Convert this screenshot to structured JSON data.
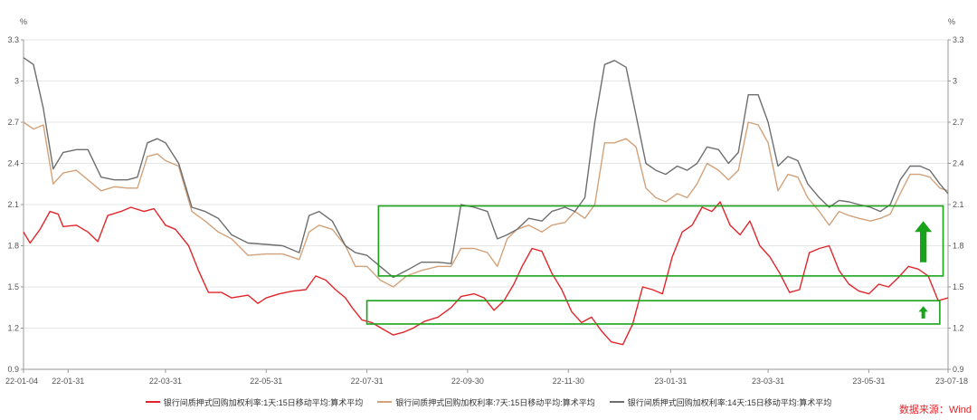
{
  "chart_data": {
    "type": "line",
    "left_unit": "%",
    "right_unit": "%",
    "ylim": [
      0.9,
      3.3
    ],
    "y_ticks": [
      0.9,
      1.2,
      1.5,
      1.8,
      2.1,
      2.4,
      2.7,
      3,
      3.3
    ],
    "y_tick_labels": [
      "0.9",
      "1.2",
      "1.5",
      "1.8",
      "2.1",
      "2.4",
      "2.7",
      "3",
      "3.3"
    ],
    "x_range": [
      "2022-01-04",
      "2023-07-18"
    ],
    "x_ticks": [
      "2022-01-04",
      "2022-01-31",
      "2022-03-31",
      "2022-05-31",
      "2022-07-31",
      "2022-09-30",
      "2022-11-30",
      "2023-01-31",
      "2023-03-31",
      "2023-05-31",
      "2023-07-18"
    ],
    "x_tick_labels": [
      "22-01-04",
      "22-01-31",
      "22-03-31",
      "22-05-31",
      "22-07-31",
      "22-09-30",
      "22-11-30",
      "23-01-31",
      "23-03-31",
      "23-05-31",
      "23-07-18"
    ],
    "grid": "horizontal",
    "legend_position": "bottom",
    "series": [
      {
        "name": "银行间质押式回购加权利率:1天:15日移动平均:算术平均",
        "color": "#e0262b",
        "points": [
          [
            "2022-01-04",
            1.9
          ],
          [
            "2022-01-08",
            1.82
          ],
          [
            "2022-01-14",
            1.92
          ],
          [
            "2022-01-20",
            2.05
          ],
          [
            "2022-01-25",
            2.03
          ],
          [
            "2022-01-28",
            1.94
          ],
          [
            "2022-02-05",
            1.95
          ],
          [
            "2022-02-12",
            1.9
          ],
          [
            "2022-02-18",
            1.83
          ],
          [
            "2022-02-24",
            2.02
          ],
          [
            "2022-03-04",
            2.05
          ],
          [
            "2022-03-10",
            2.08
          ],
          [
            "2022-03-18",
            2.05
          ],
          [
            "2022-03-24",
            2.07
          ],
          [
            "2022-03-31",
            1.95
          ],
          [
            "2022-04-06",
            1.92
          ],
          [
            "2022-04-14",
            1.8
          ],
          [
            "2022-04-20",
            1.62
          ],
          [
            "2022-04-26",
            1.46
          ],
          [
            "2022-05-04",
            1.46
          ],
          [
            "2022-05-10",
            1.42
          ],
          [
            "2022-05-20",
            1.44
          ],
          [
            "2022-05-26",
            1.38
          ],
          [
            "2022-05-31",
            1.42
          ],
          [
            "2022-06-08",
            1.45
          ],
          [
            "2022-06-16",
            1.47
          ],
          [
            "2022-06-24",
            1.48
          ],
          [
            "2022-06-30",
            1.58
          ],
          [
            "2022-07-06",
            1.55
          ],
          [
            "2022-07-12",
            1.48
          ],
          [
            "2022-07-18",
            1.42
          ],
          [
            "2022-07-22",
            1.35
          ],
          [
            "2022-07-28",
            1.26
          ],
          [
            "2022-08-03",
            1.24
          ],
          [
            "2022-08-10",
            1.19
          ],
          [
            "2022-08-16",
            1.15
          ],
          [
            "2022-08-22",
            1.17
          ],
          [
            "2022-08-28",
            1.2
          ],
          [
            "2022-09-04",
            1.25
          ],
          [
            "2022-09-12",
            1.28
          ],
          [
            "2022-09-20",
            1.35
          ],
          [
            "2022-09-26",
            1.43
          ],
          [
            "2022-10-04",
            1.45
          ],
          [
            "2022-10-10",
            1.42
          ],
          [
            "2022-10-16",
            1.33
          ],
          [
            "2022-10-22",
            1.4
          ],
          [
            "2022-10-28",
            1.52
          ],
          [
            "2022-11-02",
            1.65
          ],
          [
            "2022-11-08",
            1.78
          ],
          [
            "2022-11-14",
            1.76
          ],
          [
            "2022-11-20",
            1.6
          ],
          [
            "2022-11-26",
            1.48
          ],
          [
            "2022-12-02",
            1.32
          ],
          [
            "2022-12-08",
            1.24
          ],
          [
            "2022-12-14",
            1.28
          ],
          [
            "2022-12-20",
            1.18
          ],
          [
            "2022-12-26",
            1.1
          ],
          [
            "2023-01-02",
            1.08
          ],
          [
            "2023-01-08",
            1.23
          ],
          [
            "2023-01-14",
            1.5
          ],
          [
            "2023-01-20",
            1.48
          ],
          [
            "2023-01-26",
            1.45
          ],
          [
            "2023-02-01",
            1.72
          ],
          [
            "2023-02-07",
            1.9
          ],
          [
            "2023-02-13",
            1.95
          ],
          [
            "2023-02-19",
            2.08
          ],
          [
            "2023-02-25",
            2.05
          ],
          [
            "2023-03-02",
            2.12
          ],
          [
            "2023-03-08",
            1.95
          ],
          [
            "2023-03-14",
            1.88
          ],
          [
            "2023-03-20",
            1.98
          ],
          [
            "2023-03-26",
            1.8
          ],
          [
            "2023-04-01",
            1.72
          ],
          [
            "2023-04-07",
            1.6
          ],
          [
            "2023-04-13",
            1.46
          ],
          [
            "2023-04-19",
            1.48
          ],
          [
            "2023-04-25",
            1.75
          ],
          [
            "2023-05-01",
            1.78
          ],
          [
            "2023-05-07",
            1.8
          ],
          [
            "2023-05-13",
            1.62
          ],
          [
            "2023-05-19",
            1.52
          ],
          [
            "2023-05-25",
            1.47
          ],
          [
            "2023-05-31",
            1.45
          ],
          [
            "2023-06-06",
            1.52
          ],
          [
            "2023-06-12",
            1.5
          ],
          [
            "2023-06-18",
            1.57
          ],
          [
            "2023-06-24",
            1.65
          ],
          [
            "2023-06-30",
            1.63
          ],
          [
            "2023-07-06",
            1.58
          ],
          [
            "2023-07-12",
            1.4
          ],
          [
            "2023-07-18",
            1.42
          ]
        ]
      },
      {
        "name": "银行间质押式回购加权利率:7天:15日移动平均:算术平均",
        "color": "#d2a27a",
        "points": [
          [
            "2022-01-04",
            2.7
          ],
          [
            "2022-01-10",
            2.65
          ],
          [
            "2022-01-16",
            2.68
          ],
          [
            "2022-01-22",
            2.25
          ],
          [
            "2022-01-28",
            2.33
          ],
          [
            "2022-02-05",
            2.35
          ],
          [
            "2022-02-12",
            2.28
          ],
          [
            "2022-02-20",
            2.2
          ],
          [
            "2022-02-28",
            2.23
          ],
          [
            "2022-03-08",
            2.22
          ],
          [
            "2022-03-14",
            2.22
          ],
          [
            "2022-03-20",
            2.45
          ],
          [
            "2022-03-26",
            2.47
          ],
          [
            "2022-03-31",
            2.42
          ],
          [
            "2022-04-08",
            2.38
          ],
          [
            "2022-04-16",
            2.05
          ],
          [
            "2022-04-24",
            1.98
          ],
          [
            "2022-05-02",
            1.9
          ],
          [
            "2022-05-10",
            1.85
          ],
          [
            "2022-05-20",
            1.73
          ],
          [
            "2022-05-31",
            1.74
          ],
          [
            "2022-06-10",
            1.74
          ],
          [
            "2022-06-20",
            1.7
          ],
          [
            "2022-06-26",
            1.9
          ],
          [
            "2022-07-02",
            1.95
          ],
          [
            "2022-07-10",
            1.92
          ],
          [
            "2022-07-18",
            1.8
          ],
          [
            "2022-07-24",
            1.65
          ],
          [
            "2022-07-31",
            1.65
          ],
          [
            "2022-08-08",
            1.55
          ],
          [
            "2022-08-16",
            1.5
          ],
          [
            "2022-08-24",
            1.58
          ],
          [
            "2022-09-02",
            1.62
          ],
          [
            "2022-09-12",
            1.65
          ],
          [
            "2022-09-20",
            1.65
          ],
          [
            "2022-09-26",
            1.78
          ],
          [
            "2022-10-04",
            1.78
          ],
          [
            "2022-10-12",
            1.75
          ],
          [
            "2022-10-18",
            1.65
          ],
          [
            "2022-10-24",
            1.85
          ],
          [
            "2022-10-30",
            1.92
          ],
          [
            "2022-11-06",
            1.95
          ],
          [
            "2022-11-14",
            1.9
          ],
          [
            "2022-11-20",
            1.95
          ],
          [
            "2022-11-28",
            1.97
          ],
          [
            "2022-12-04",
            2.05
          ],
          [
            "2022-12-10",
            2.0
          ],
          [
            "2022-12-16",
            2.1
          ],
          [
            "2022-12-22",
            2.55
          ],
          [
            "2022-12-28",
            2.55
          ],
          [
            "2023-01-04",
            2.58
          ],
          [
            "2023-01-10",
            2.52
          ],
          [
            "2023-01-16",
            2.22
          ],
          [
            "2023-01-22",
            2.15
          ],
          [
            "2023-01-28",
            2.12
          ],
          [
            "2023-02-04",
            2.18
          ],
          [
            "2023-02-10",
            2.15
          ],
          [
            "2023-02-16",
            2.25
          ],
          [
            "2023-02-22",
            2.4
          ],
          [
            "2023-03-01",
            2.35
          ],
          [
            "2023-03-07",
            2.28
          ],
          [
            "2023-03-13",
            2.35
          ],
          [
            "2023-03-19",
            2.7
          ],
          [
            "2023-03-25",
            2.68
          ],
          [
            "2023-03-31",
            2.55
          ],
          [
            "2023-04-06",
            2.2
          ],
          [
            "2023-04-12",
            2.32
          ],
          [
            "2023-04-18",
            2.3
          ],
          [
            "2023-04-24",
            2.15
          ],
          [
            "2023-05-01",
            2.05
          ],
          [
            "2023-05-07",
            1.95
          ],
          [
            "2023-05-13",
            2.05
          ],
          [
            "2023-05-19",
            2.02
          ],
          [
            "2023-05-25",
            2.0
          ],
          [
            "2023-06-01",
            1.98
          ],
          [
            "2023-06-07",
            2.0
          ],
          [
            "2023-06-13",
            2.03
          ],
          [
            "2023-06-19",
            2.18
          ],
          [
            "2023-06-25",
            2.32
          ],
          [
            "2023-07-01",
            2.32
          ],
          [
            "2023-07-07",
            2.3
          ],
          [
            "2023-07-13",
            2.22
          ],
          [
            "2023-07-18",
            2.2
          ]
        ]
      },
      {
        "name": "银行间质押式回购加权利率:14天:15日移动平均:算术平均",
        "color": "#6e6e6e",
        "points": [
          [
            "2022-01-04",
            3.17
          ],
          [
            "2022-01-10",
            3.12
          ],
          [
            "2022-01-16",
            2.8
          ],
          [
            "2022-01-22",
            2.36
          ],
          [
            "2022-01-28",
            2.48
          ],
          [
            "2022-02-05",
            2.5
          ],
          [
            "2022-02-12",
            2.5
          ],
          [
            "2022-02-20",
            2.3
          ],
          [
            "2022-02-28",
            2.28
          ],
          [
            "2022-03-08",
            2.28
          ],
          [
            "2022-03-14",
            2.3
          ],
          [
            "2022-03-20",
            2.55
          ],
          [
            "2022-03-26",
            2.58
          ],
          [
            "2022-03-31",
            2.55
          ],
          [
            "2022-04-08",
            2.4
          ],
          [
            "2022-04-16",
            2.08
          ],
          [
            "2022-04-24",
            2.05
          ],
          [
            "2022-05-02",
            2.0
          ],
          [
            "2022-05-10",
            1.88
          ],
          [
            "2022-05-20",
            1.82
          ],
          [
            "2022-05-31",
            1.81
          ],
          [
            "2022-06-10",
            1.8
          ],
          [
            "2022-06-20",
            1.75
          ],
          [
            "2022-06-26",
            2.02
          ],
          [
            "2022-07-02",
            2.05
          ],
          [
            "2022-07-10",
            1.98
          ],
          [
            "2022-07-18",
            1.8
          ],
          [
            "2022-07-24",
            1.75
          ],
          [
            "2022-07-31",
            1.73
          ],
          [
            "2022-08-08",
            1.65
          ],
          [
            "2022-08-16",
            1.57
          ],
          [
            "2022-08-24",
            1.62
          ],
          [
            "2022-09-02",
            1.68
          ],
          [
            "2022-09-12",
            1.68
          ],
          [
            "2022-09-20",
            1.67
          ],
          [
            "2022-09-26",
            2.1
          ],
          [
            "2022-10-04",
            2.08
          ],
          [
            "2022-10-12",
            2.05
          ],
          [
            "2022-10-18",
            1.85
          ],
          [
            "2022-10-24",
            1.88
          ],
          [
            "2022-10-30",
            1.92
          ],
          [
            "2022-11-06",
            2.0
          ],
          [
            "2022-11-14",
            1.98
          ],
          [
            "2022-11-20",
            2.05
          ],
          [
            "2022-11-28",
            2.08
          ],
          [
            "2022-12-04",
            2.05
          ],
          [
            "2022-12-10",
            2.15
          ],
          [
            "2022-12-16",
            2.7
          ],
          [
            "2022-12-22",
            3.12
          ],
          [
            "2022-12-28",
            3.15
          ],
          [
            "2023-01-04",
            3.1
          ],
          [
            "2023-01-10",
            2.75
          ],
          [
            "2023-01-16",
            2.4
          ],
          [
            "2023-01-22",
            2.35
          ],
          [
            "2023-01-28",
            2.32
          ],
          [
            "2023-02-04",
            2.38
          ],
          [
            "2023-02-10",
            2.35
          ],
          [
            "2023-02-16",
            2.4
          ],
          [
            "2023-02-22",
            2.52
          ],
          [
            "2023-03-01",
            2.5
          ],
          [
            "2023-03-07",
            2.4
          ],
          [
            "2023-03-13",
            2.48
          ],
          [
            "2023-03-19",
            2.9
          ],
          [
            "2023-03-25",
            2.9
          ],
          [
            "2023-03-31",
            2.7
          ],
          [
            "2023-04-06",
            2.38
          ],
          [
            "2023-04-12",
            2.45
          ],
          [
            "2023-04-18",
            2.42
          ],
          [
            "2023-04-24",
            2.25
          ],
          [
            "2023-05-01",
            2.15
          ],
          [
            "2023-05-07",
            2.08
          ],
          [
            "2023-05-13",
            2.13
          ],
          [
            "2023-05-19",
            2.12
          ],
          [
            "2023-05-25",
            2.1
          ],
          [
            "2023-06-01",
            2.08
          ],
          [
            "2023-06-07",
            2.05
          ],
          [
            "2023-06-13",
            2.1
          ],
          [
            "2023-06-19",
            2.28
          ],
          [
            "2023-06-25",
            2.38
          ],
          [
            "2023-07-01",
            2.38
          ],
          [
            "2023-07-07",
            2.35
          ],
          [
            "2023-07-13",
            2.25
          ],
          [
            "2023-07-18",
            2.18
          ]
        ]
      }
    ],
    "annotations": [
      {
        "type": "box",
        "color": "#1aa31a",
        "x_start": "2022-08-07",
        "x_end": "2023-07-15",
        "y_low": 1.58,
        "y_high": 2.09
      },
      {
        "type": "box",
        "color": "#1aa31a",
        "x_start": "2022-07-31",
        "x_end": "2023-07-13",
        "y_low": 1.23,
        "y_high": 1.4
      },
      {
        "type": "arrow_up",
        "color": "#1aa31a",
        "x": "2023-07-03",
        "y_from": 1.68,
        "y_to": 1.98
      },
      {
        "type": "arrow_up",
        "color": "#1aa31a",
        "x": "2023-07-03",
        "y_from": 1.27,
        "y_to": 1.36
      }
    ]
  },
  "source_text": "数据来源：Wind"
}
